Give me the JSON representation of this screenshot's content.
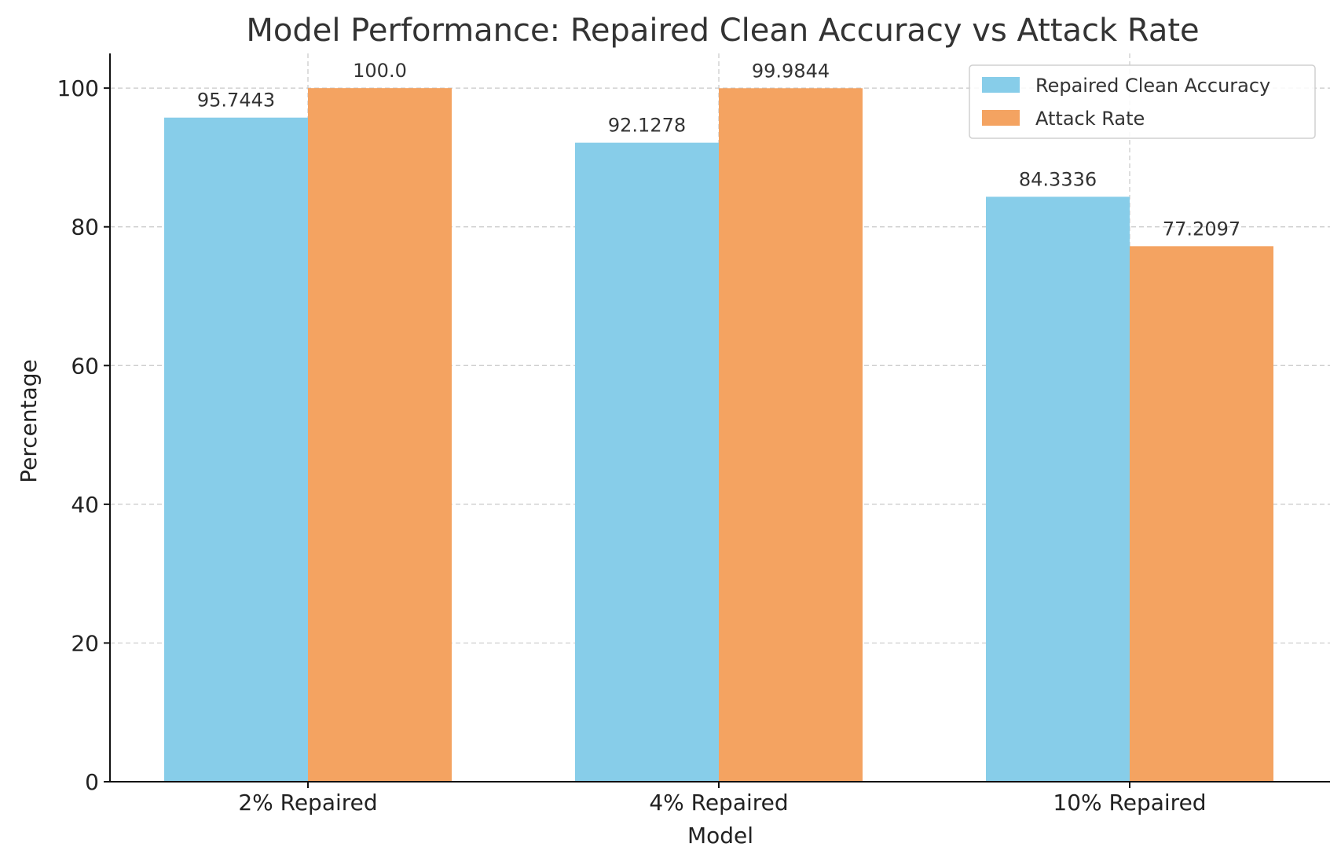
{
  "chart_data": {
    "type": "bar",
    "title": "Model Performance: Repaired Clean Accuracy vs Attack Rate",
    "xlabel": "Model",
    "ylabel": "Percentage",
    "categories": [
      "2% Repaired",
      "4% Repaired",
      "10% Repaired"
    ],
    "series": [
      {
        "name": "Repaired Clean Accuracy",
        "color": "#87CDE9",
        "values": [
          95.7443,
          92.1278,
          84.3336
        ],
        "labels": [
          "95.7443",
          "92.1278",
          "84.3336"
        ]
      },
      {
        "name": "Attack Rate",
        "color": "#F4A361",
        "values": [
          100.0,
          99.9844,
          77.2097
        ],
        "labels": [
          "100.0",
          "99.9844",
          "77.2097"
        ]
      }
    ],
    "ylim": [
      0,
      105
    ],
    "yticks": [
      0,
      20,
      40,
      60,
      80,
      100
    ],
    "grid": true,
    "legend_position": "top-right"
  }
}
